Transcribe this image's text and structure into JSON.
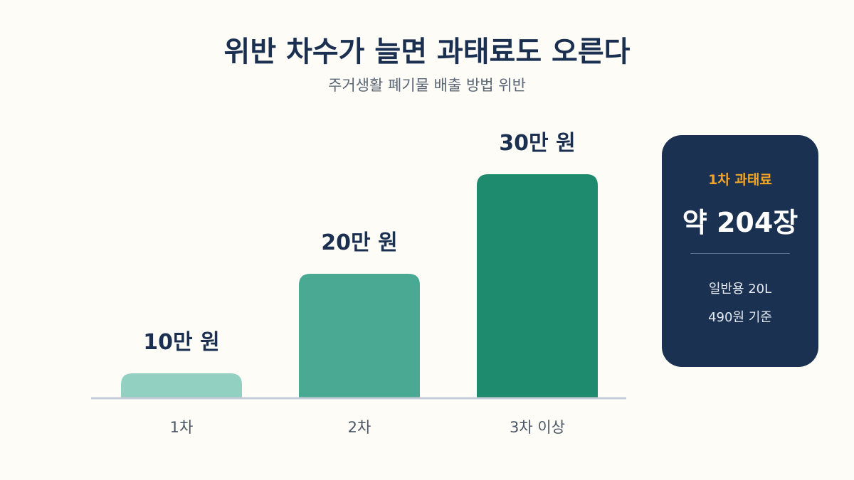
{
  "title": "위반 차수가 늘면 과태료도 오른다",
  "subtitle": "주거생활 폐기물 배출 방법 위반",
  "chart_data": {
    "type": "bar",
    "categories": [
      "1차",
      "2차",
      "3차 이상"
    ],
    "values": [
      10,
      20,
      30
    ],
    "value_labels": [
      "10만 원",
      "20만 원",
      "30만 원"
    ],
    "unit": "만 원",
    "ylim": [
      0,
      30
    ],
    "grid": false,
    "colors": [
      "#92d1c1",
      "#4aa992",
      "#1e8a6e"
    ]
  },
  "info_card": {
    "label": "1차 과태료",
    "value": "약 204장",
    "note_1": "일반용 20L",
    "note_2": "490원 기준",
    "background": "#1b3152",
    "accent": "#f4a623"
  }
}
